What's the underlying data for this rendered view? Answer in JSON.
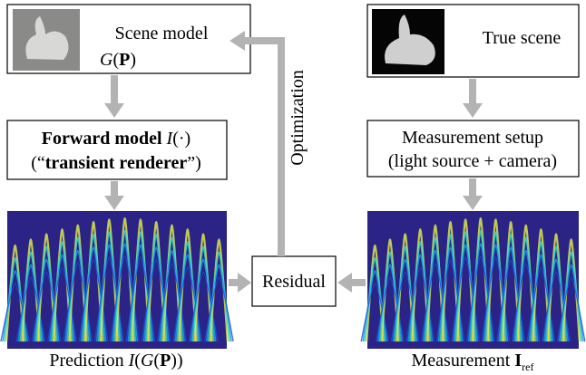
{
  "nodes": [
    {
      "label": "Scene model",
      "formula": [
        "G",
        "(",
        "P",
        ")"
      ]
    },
    {
      "label": "True scene"
    },
    {
      "label": [
        "Forward model",
        "I",
        "(·)"
      ],
      "sublabel": [
        "(“",
        "transient renderer",
        "”)"
      ]
    },
    {
      "label": "Measurement setup",
      "sublabel": "(light source + camera)"
    },
    {
      "label": "Residual"
    }
  ],
  "edges": [
    {
      "label": "Optimization"
    }
  ],
  "captions": [
    [
      "Prediction ",
      "I",
      "(",
      "G",
      "(",
      "P",
      "))"
    ],
    [
      "Measurement ",
      "I",
      "ref"
    ]
  ]
}
